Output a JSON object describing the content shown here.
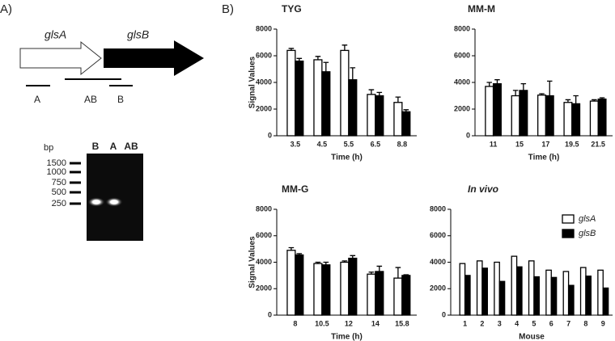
{
  "panel_labels": [
    "A)",
    "B)"
  ],
  "diagram": {
    "gene_a": "glsA",
    "gene_b": "glsB",
    "regions": [
      "A",
      "AB",
      "B"
    ],
    "gel": {
      "unit": "bp",
      "lanes": [
        "B",
        "A",
        "AB"
      ],
      "ladder": [
        "1500",
        "1000",
        "750",
        "500",
        "250"
      ]
    }
  },
  "chart_data": [
    {
      "type": "bar",
      "title": "TYG",
      "ylabel": "Signal Values",
      "xlabel": "Time (h)",
      "categories": [
        "3.5",
        "4.5",
        "5.5",
        "6.5",
        "8.8"
      ],
      "ylim": [
        0,
        8000
      ],
      "yticks": [
        0,
        2000,
        4000,
        6000,
        8000
      ],
      "series": [
        {
          "color": "#ffffff",
          "values": [
            6400,
            5700,
            6400,
            3100,
            2500
          ],
          "errors": [
            150,
            250,
            400,
            350,
            400
          ]
        },
        {
          "color": "#000000",
          "values": [
            5600,
            4800,
            4200,
            3000,
            1800
          ],
          "errors": [
            200,
            700,
            900,
            250,
            150
          ]
        }
      ]
    },
    {
      "type": "bar",
      "title": "MM-M",
      "xlabel": "Time (h)",
      "categories": [
        "11",
        "15",
        "17",
        "19.5",
        "21.5"
      ],
      "ylim": [
        0,
        8000
      ],
      "yticks": [
        0,
        2000,
        4000,
        6000,
        8000
      ],
      "series": [
        {
          "color": "#ffffff",
          "values": [
            3700,
            3000,
            3050,
            2500,
            2600
          ],
          "errors": [
            300,
            400,
            100,
            200,
            100
          ]
        },
        {
          "color": "#000000",
          "values": [
            3900,
            3400,
            3000,
            2400,
            2750
          ],
          "errors": [
            300,
            500,
            1100,
            600,
            100
          ]
        }
      ]
    },
    {
      "type": "bar",
      "title": "MM-G",
      "ylabel": "Signal Values",
      "xlabel": "Time (h)",
      "categories": [
        "8",
        "10.5",
        "12",
        "14",
        "15.8"
      ],
      "ylim": [
        0,
        8000
      ],
      "yticks": [
        0,
        2000,
        4000,
        6000,
        8000
      ],
      "series": [
        {
          "color": "#ffffff",
          "values": [
            4900,
            3900,
            4000,
            3100,
            2800
          ],
          "errors": [
            200,
            100,
            100,
            150,
            800
          ]
        },
        {
          "color": "#000000",
          "values": [
            4550,
            3800,
            4300,
            3300,
            3000
          ],
          "errors": [
            100,
            200,
            200,
            400,
            50
          ]
        }
      ]
    },
    {
      "type": "bar",
      "title": "In vivo",
      "xlabel": "Mouse",
      "legend": "upper right",
      "categories": [
        "1",
        "2",
        "3",
        "4",
        "5",
        "6",
        "7",
        "8",
        "9"
      ],
      "ylim": [
        0,
        8000
      ],
      "yticks": [
        0,
        2000,
        4000,
        6000,
        8000
      ],
      "series": [
        {
          "name": "glsA",
          "color": "#ffffff",
          "values": [
            3900,
            4100,
            4000,
            4450,
            4100,
            3400,
            3300,
            3600,
            3400
          ]
        },
        {
          "name": "glsB",
          "color": "#000000",
          "values": [
            3000,
            3550,
            2550,
            3650,
            2900,
            2850,
            2250,
            2950,
            2050
          ]
        }
      ]
    }
  ]
}
